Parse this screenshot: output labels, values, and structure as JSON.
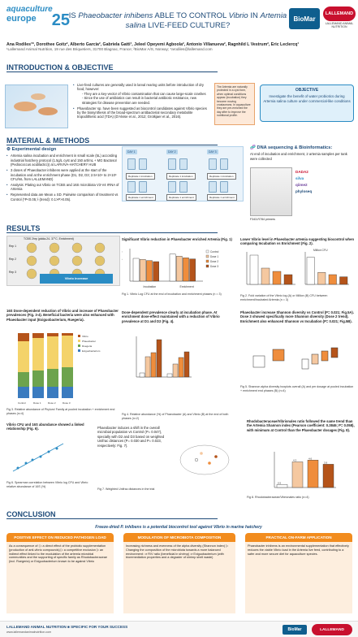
{
  "header": {
    "conference_logo_line1": "aquaculture",
    "conference_logo_line2": "europe",
    "conference_logo_year": "25",
    "title_part1": "IS ",
    "title_italic1": "Phaeobacter inhibens",
    "title_part2": " ABLE TO CONTROL ",
    "title_italic2": "Vibrio",
    "title_part3": " IN ",
    "title_italic3": "Artemia salina",
    "title_part4": " LIVE-FEED CULTURE?",
    "biomar_logo": "BioMar",
    "lallemand_logo": "LALLEMAND",
    "lallemand_sub": "LALLEMAND ANIMAL NUTRITION"
  },
  "authors": {
    "names": "Ana Rodiles¹*, Dorothee Goitz², Alberto Garcia², Gabriela Gatti¹, Jeleel Opeyemi Agboola², Antonio Villanueva², Ragnhild L Vestrum², Eric Leclercq¹",
    "affiliation": "¹Lallemand Animal Nutrition, 19 rue des Briquetiers, 31700 Blagnac, France; ²BioMar A/S, Norway; *arodiles@lallemand.com"
  },
  "intro": {
    "title": "INTRODUCTION & OBJECTIVE",
    "bullet1": "Live-feed cultures are generally used in larval rearing units before introduction of dry food, however:",
    "sub1": "- They are a key-vector of Vibrio contamination that can cause large-scale crashes",
    "sub2": "- Since the use of antibiotics can result in bacterial antibiotic resistance, new strategies for disease prevention are needed.",
    "bullet2": "Phaeobacter sp. have been suggested as biocontrol candidates against Vibrio species by the biosynthesis of the broad-spectrum antibacterial secondary metabolite tropodithietic acid (TDA) (D'Alvise et al., 2012; Grotkjaer et al., 2016).",
    "note": "The Artemia are naturally protected in a cyst form, when optimal conditions appear (incubation) they become moving crustaceans. In aquaculture they are pre-enriched the day after to improve the nutritional profile.",
    "objective_head": "OBJECTIVE",
    "objective_body": "Investigate the benefit of water probiotics during Artemia salina culture under commercial-like conditions"
  },
  "methods": {
    "title": "MATERIAL & METHODS",
    "exp_head": "Experimental design",
    "m1": "Artemia salina incubation and enrichment in small scale (5L) according industrial hatchery protocol (1.5g/L cyst and 150 art/mL + MG Bactosol (Pediococcus acidilactici)) at LARVIVA-HATCHERY HUB",
    "m2": "3 doses of Phaeobacter inhibens were applied at the start of the incubation and at the enrichment phase (D1, D2, D3; 2.5×10⁴ to 2×10⁶ CFU/mL from LALLEMAND)",
    "m3": "Analysis: Plating out Vibrio on TCBS and 16S microbiota V3-V4 rRNA of Artemia",
    "m4": "Represented data are Mean ± SD. Pairwise comparison of treatment vs Control (*P<0.05; ł (trend): 0.1>P>0.05).",
    "day1": "DAY 1",
    "day2": "DAY 2",
    "day3": "DAY 3",
    "rep_inc": "Replicate 1 incubation",
    "rep_enr": "Replicate 1 enrichment",
    "dna_head": "DNA sequencing & Bioinformatics:",
    "dna_text": "At end of incubation and enrichment, 2 artemia samples per tank were collected",
    "dna_label": "F343-R784 primers",
    "tool1": "DADA2",
    "tool2": "silva",
    "tool3": "qiime2",
    "tool4": "phyloseq"
  },
  "results": {
    "title": "RESULTS",
    "img_title": "TCBS 2hrp (pidda-24- 37°C, Enrichment)",
    "rep1": "Rep 1",
    "rep2": "Rep 2",
    "rep3": "Rep 3",
    "vibrio_arrow": "Vibrio increase",
    "fig1_head": "Significant Vibrio reduction in Phaeobacter enriched Artemia (Fig. 1)",
    "fig1_caption": "Fig 1. Vibrio Log CFU at the end of incubation and enrichment phases (n = 3)",
    "fig2_head": "Lower Vibrio level in Phaeobacter artemia suggesting biocontrol when comparing Incubation vs Enrichment (Fig. 2).",
    "fig2_caption": "Fig 2. Fold variation of the Vibrio log (A) or Million (B) CFU between enrichment/incubated Artemia (n = 3)",
    "fig3_head": "16S Dose-dependent reduction of Vibrio and increase of Phaeobacter prevalences (Fig. 3-4). Beneficial bacteria were also enhanced with Phaeobacter input (Exiguobacterium, Ruegeria).",
    "fig3_caption": "Fig 3. Relative abundance of Phylum/ Family at pooled incubation + enrichment end phases (n=4)",
    "fig4_head": "Dose-dependent prevalence clearly at incubation phase. At enrichment dose-effect maintained with a reduction of Vibrio prevalence at D1 and D2 (Fig. 4).",
    "fig4_caption": "Fig 4. Relative abundance (%) of Phaeobacter (A) and Vibrio (B) at the end of both phases (n=2)",
    "fig5_head": "Phaeobacter increase Shannon diversity vs Control (P= 0.021; Fig.5A). Dose 3 showed specifically more Shannon diversity (Dose 2 trend). Enrichment also enhanced Shannon vs Incubation (P= 0.021; Fig.5B).",
    "fig5_caption": "Fig 5. Shannon alpha diversity boxplots overall (A) and per dosage at pooled incubation + enrichment end phases (B) (n=4)",
    "fig6_head": "Vibrio CFU and 16S abundance showed a linked relationship (Fig. 6).",
    "fig6_caption": "Fig 6. Spearman correlation between Vibrio log CFU and Vibrio relative abundance of 16S (%)",
    "fig7_head": "Phaeobacter induces a shift in the overall microbial population vs Control (P= 0.047), specially with D2 and D3 based on weighted Unifrac distances (P= 0.030 and P= 0.023, respectively: Fig. 7).",
    "fig7_caption": "Fig 7. Weighted Unifrac distances in the trial",
    "fig8_head": "Rhodobacteraceae/Vibrionales ratio followed the same trend than the Artemia Shannon index (Pearson coefficient: 0.3846; P= 0.058), with minimum at Control than the Phaeobacter dosages (Fig. 8).",
    "fig8_caption": "Fig 8. Rhodobacteraceae/Vibrionales ratio (n=4)"
  },
  "conclusion": {
    "title": "CONCLUSION",
    "tagline": "Freeze-dried P. inhibens is a potential biocontrol tool against Vibrio in marine hatchery",
    "box1_head": "POSITIVE EFFECT ON REDUCED PATHOGEN LOAD",
    "box1_body": "As a consequence of: ▷ a direct effect of the probiotic supplementation (production of anti-vibrio compounds) ▷ a competitive exclusion ▷ an indirect effect linked to the modulation of the artemia microbial communities and the supporting of specific family as Rhodobacteraceae (incl. Ruegeria) or Exiguobacterium known to be against Vibrio",
    "box2_head": "MODULATION OF MICROBIOTA COMPOSITION",
    "box2_body": "Increasing richness and evenness of the alpha diversity (Shannon index) ▷ Changing the composition of the microbiota towards a more balanced environment: ⇒ R/V ratio (beneficial in shrimp) ⇒ Exiguobacterium (with bioremediation properties and a degrader of shrimp shell waste)",
    "box3_head": "PRACTICAL ON-FARM APPLICATION",
    "box3_body": "Phaeobacter inhibens is an environmental supplementation that effectively reduces the viable Vibrio load in the Artemia live feed, contributing to a safer and more secure diet for aquaculture species."
  },
  "footer": {
    "brand": "LALLEMAND ANIMAL NUTRITION ■ SPECIFIC FOR YOUR SUCCESS",
    "url": "www.lallemandanimalnutrition.com",
    "biomar": "BioMar",
    "lallemand": "LALLEMAND"
  },
  "chart_data": [
    {
      "type": "bar",
      "title": "Vibrio Log CFU/g",
      "categories": [
        "Incubation",
        "Enrichment"
      ],
      "series": [
        {
          "name": "Control",
          "values": [
            4.2,
            5.0
          ]
        },
        {
          "name": "Dose 1",
          "values": [
            4.0,
            4.6
          ]
        },
        {
          "name": "Dose 2",
          "values": [
            3.8,
            4.3
          ]
        },
        {
          "name": "Dose 3",
          "values": [
            3.6,
            4.1
          ]
        }
      ],
      "ylim": [
        0,
        6
      ]
    },
    {
      "type": "bar",
      "title": "Million CFU",
      "categories": [
        "Control",
        "Dose 1",
        "Dose 2",
        "Dose 3"
      ],
      "values": [
        5.0,
        2.2,
        1.8,
        1.4
      ],
      "ylim": [
        0,
        6
      ]
    },
    {
      "type": "bar",
      "categories": [
        "Control",
        "Dose 1",
        "Dose 2",
        "Dose 3"
      ],
      "values": [
        0.5,
        4.3,
        4.6,
        3.9
      ],
      "ylim": [
        0,
        6
      ]
    }
  ],
  "colors": {
    "navy": "#1d4a78",
    "accent_blue": "#2a8cc4",
    "orange": "#f28c1e",
    "red": "#c8102e",
    "control": "#ffffff",
    "dose1": "#f5c8a0",
    "dose2": "#ef8d3c",
    "dose3": "#b5541a"
  }
}
